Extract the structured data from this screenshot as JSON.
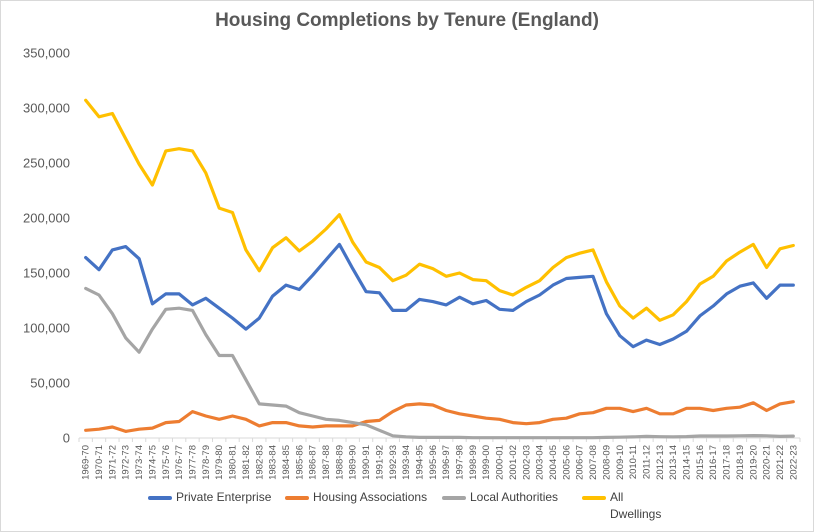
{
  "chart_data": {
    "type": "line",
    "title": "Housing Completions by Tenure (England)",
    "xlabel": "",
    "ylabel": "",
    "ylim": [
      0,
      350000
    ],
    "y_ticks": [
      "0",
      "50,000",
      "100,000",
      "150,000",
      "200,000",
      "250,000",
      "300,000",
      "350,000"
    ],
    "y_tick_values": [
      0,
      50000,
      100000,
      150000,
      200000,
      250000,
      300000,
      350000
    ],
    "grid": false,
    "legend_position": "bottom",
    "categories": [
      "1969-70",
      "1970-71",
      "1971-72",
      "1972-73",
      "1973-74",
      "1974-75",
      "1975-76",
      "1976-77",
      "1977-78",
      "1978-79",
      "1979-80",
      "1980-81",
      "1981-82",
      "1982-83",
      "1983-84",
      "1984-85",
      "1985-86",
      "1986-87",
      "1987-88",
      "1988-89",
      "1989-90",
      "1990-91",
      "1991-92",
      "1992-93",
      "1993-94",
      "1994-95",
      "1995-96",
      "1996-97",
      "1997-98",
      "1998-99",
      "1999-00",
      "2000-01",
      "2001-02",
      "2002-03",
      "2003-04",
      "2004-05",
      "2005-06",
      "2006-07",
      "2007-08",
      "2008-09",
      "2009-10",
      "2010-11",
      "2011-12",
      "2012-13",
      "2013-14",
      "2014-15",
      "2015-16",
      "2016-17",
      "2017-18",
      "2018-19",
      "2019-20",
      "2020-21",
      "2021-22",
      "2022-23"
    ],
    "series": [
      {
        "name": "Private Enterprise",
        "color": "#4472c4",
        "values": [
          164000,
          153000,
          171000,
          174000,
          163000,
          122000,
          131000,
          131000,
          121000,
          127000,
          118000,
          109000,
          99000,
          109000,
          129000,
          139000,
          135000,
          148000,
          162000,
          176000,
          154000,
          133000,
          132000,
          116000,
          116000,
          126000,
          124000,
          121000,
          128000,
          122000,
          125000,
          117000,
          116000,
          124000,
          130000,
          139000,
          145000,
          146000,
          147000,
          113000,
          93000,
          83000,
          89000,
          85000,
          90000,
          97000,
          111000,
          120000,
          131000,
          138000,
          141000,
          127000,
          139000,
          139000
        ]
      },
      {
        "name": "Housing Associations",
        "color": "#ed7d31",
        "values": [
          7000,
          8000,
          10000,
          6000,
          8000,
          9000,
          14000,
          15000,
          24000,
          20000,
          17000,
          20000,
          17000,
          11000,
          14000,
          14000,
          11000,
          10000,
          11000,
          11000,
          11000,
          15000,
          16000,
          24000,
          30000,
          31000,
          30000,
          25000,
          22000,
          20000,
          18000,
          17000,
          14000,
          13000,
          14000,
          17000,
          18000,
          22000,
          23000,
          27000,
          27000,
          24000,
          27000,
          22000,
          22000,
          27000,
          27000,
          25000,
          27000,
          28000,
          32000,
          25000,
          31000,
          33000
        ]
      },
      {
        "name": "Local Authorities",
        "color": "#a5a5a5",
        "values": [
          136000,
          130000,
          113000,
          91000,
          78000,
          99000,
          117000,
          118000,
          116000,
          94000,
          75000,
          75000,
          53000,
          31000,
          30000,
          29000,
          23000,
          20000,
          17000,
          16000,
          14000,
          12000,
          7000,
          2000,
          1000,
          500,
          500,
          500,
          500,
          300,
          300,
          300,
          300,
          300,
          300,
          300,
          300,
          300,
          300,
          500,
          700,
          1000,
          1500,
          1200,
          1000,
          1300,
          1800,
          1800,
          1800,
          2000,
          2200,
          2000,
          1500,
          1700
        ]
      },
      {
        "name": "All Dwellings",
        "label_lines": [
          "All",
          "Dwellings"
        ],
        "color": "#ffc000",
        "values": [
          307000,
          292000,
          295000,
          272000,
          249000,
          230000,
          261000,
          263000,
          261000,
          241000,
          209000,
          205000,
          171000,
          152000,
          173000,
          182000,
          170000,
          179000,
          190000,
          203000,
          178000,
          160000,
          155000,
          143000,
          148000,
          158000,
          154000,
          147000,
          150000,
          144000,
          143000,
          134000,
          130000,
          137000,
          143000,
          155000,
          164000,
          168000,
          171000,
          142000,
          120000,
          109000,
          118000,
          107000,
          112000,
          124000,
          140000,
          147000,
          161000,
          169000,
          176000,
          155000,
          172000,
          175000
        ]
      }
    ]
  }
}
